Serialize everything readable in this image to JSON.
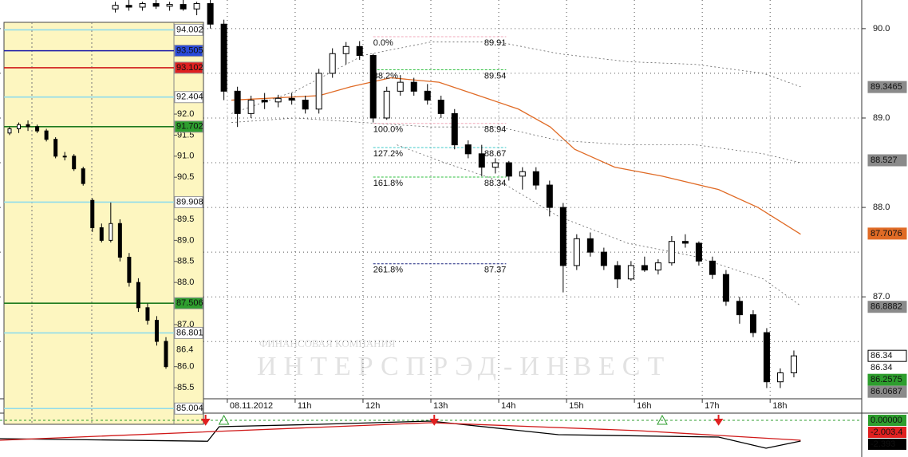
{
  "chart_data": [
    {
      "type": "candlestick",
      "xlim": [
        6.65,
        19.35
      ],
      "ylim": [
        85.86,
        90.32
      ],
      "xticks": [
        {
          "value": 10,
          "label": "08.11.2012"
        },
        {
          "value": 11,
          "label": "11h"
        },
        {
          "value": 12,
          "label": "12h"
        },
        {
          "value": 13,
          "label": "13h"
        },
        {
          "value": 14,
          "label": "14h"
        },
        {
          "value": 15,
          "label": "15h"
        },
        {
          "value": 16,
          "label": "16h"
        },
        {
          "value": 17,
          "label": "17h"
        },
        {
          "value": 18,
          "label": "18h"
        }
      ],
      "yticks": [
        {
          "value": 87,
          "label": "87.0"
        },
        {
          "value": 88,
          "label": "88.0"
        },
        {
          "value": 89,
          "label": "89.0"
        },
        {
          "value": 90,
          "label": "90.0"
        }
      ],
      "yminor": [
        86.5,
        87.5,
        88.5,
        89.5
      ],
      "grid": true,
      "x": [
        8.35,
        8.55,
        8.75,
        8.95,
        9.15,
        9.35,
        9.55,
        9.75,
        9.95,
        10.15,
        10.35,
        10.55,
        10.75,
        10.95,
        11.15,
        11.35,
        11.55,
        11.75,
        11.95,
        12.15,
        12.35,
        12.55,
        12.75,
        12.95,
        13.15,
        13.35,
        13.55,
        13.75,
        13.95,
        14.15,
        14.35,
        14.55,
        14.75,
        14.95,
        15.15,
        15.35,
        15.55,
        15.75,
        15.95,
        16.15,
        16.35,
        16.55,
        16.75,
        16.95,
        17.15,
        17.35,
        17.55,
        17.75,
        17.95,
        18.15,
        18.35
      ],
      "open": [
        90.22,
        90.26,
        90.24,
        90.28,
        90.25,
        90.27,
        90.22,
        90.28,
        90.05,
        89.3,
        89.05,
        89.2,
        89.18,
        89.22,
        89.2,
        89.1,
        89.5,
        89.72,
        89.8,
        89.7,
        89.0,
        89.3,
        89.4,
        89.3,
        89.2,
        89.05,
        88.7,
        88.6,
        88.45,
        88.5,
        88.35,
        88.4,
        88.25,
        88.0,
        87.35,
        87.65,
        87.5,
        87.35,
        87.2,
        87.35,
        87.3,
        87.38,
        87.62,
        87.6,
        87.4,
        87.25,
        86.95,
        86.8,
        86.6,
        86.05,
        86.15
      ],
      "high": [
        90.3,
        90.32,
        90.3,
        90.32,
        90.3,
        90.32,
        90.3,
        90.32,
        90.1,
        89.35,
        89.25,
        89.28,
        89.26,
        89.28,
        89.25,
        89.55,
        89.78,
        89.85,
        89.86,
        89.72,
        89.35,
        89.48,
        89.45,
        89.38,
        89.25,
        89.1,
        88.75,
        88.7,
        88.55,
        88.52,
        88.45,
        88.45,
        88.3,
        88.05,
        87.7,
        87.72,
        87.55,
        87.4,
        87.4,
        87.45,
        87.42,
        87.68,
        87.7,
        87.62,
        87.45,
        87.3,
        87.0,
        86.85,
        86.65,
        86.2,
        86.4
      ],
      "low": [
        90.18,
        90.2,
        90.2,
        90.22,
        90.2,
        90.2,
        90.15,
        90.0,
        89.2,
        88.9,
        89.0,
        89.1,
        89.12,
        89.15,
        89.05,
        89.05,
        89.45,
        89.6,
        89.65,
        88.95,
        88.98,
        89.25,
        89.25,
        89.15,
        89.0,
        88.65,
        88.55,
        88.35,
        88.38,
        88.3,
        88.2,
        88.2,
        87.9,
        87.05,
        87.3,
        87.45,
        87.3,
        87.1,
        87.18,
        87.28,
        87.25,
        87.35,
        87.55,
        87.35,
        87.2,
        86.9,
        86.7,
        86.55,
        85.98,
        85.98,
        86.1
      ],
      "close": [
        90.26,
        90.24,
        90.28,
        90.25,
        90.27,
        90.22,
        90.28,
        90.05,
        89.3,
        89.05,
        89.2,
        89.18,
        89.22,
        89.2,
        89.1,
        89.5,
        89.72,
        89.8,
        89.7,
        89.0,
        89.3,
        89.4,
        89.3,
        89.2,
        89.05,
        88.7,
        88.6,
        88.45,
        88.5,
        88.35,
        88.4,
        88.25,
        88.0,
        87.35,
        87.65,
        87.5,
        87.35,
        87.2,
        87.35,
        87.3,
        87.38,
        87.62,
        87.6,
        87.4,
        87.25,
        86.95,
        86.8,
        86.6,
        86.05,
        86.15,
        86.34
      ],
      "series": [
        {
          "color": "#e06b26",
          "style": "solid",
          "x": [
            10.06,
            11.35,
            11.82,
            12.41,
            13.12,
            13.71,
            14.29,
            14.76,
            15.12,
            15.71,
            16.41,
            17.24,
            17.82,
            18.45
          ],
          "values": [
            89.2,
            89.25,
            89.35,
            89.45,
            89.4,
            89.25,
            89.1,
            88.9,
            88.65,
            88.45,
            88.35,
            88.2,
            88.0,
            87.7
          ]
        },
        {
          "color": "#666666",
          "style": "dotted",
          "x": [
            10.06,
            11.0,
            12.0,
            13.0,
            14.0,
            14.88,
            15.9,
            16.9,
            17.9,
            18.45
          ],
          "values": [
            89.05,
            89.3,
            89.7,
            89.85,
            89.85,
            89.72,
            89.63,
            89.6,
            89.5,
            89.35
          ]
        },
        {
          "color": "#666666",
          "style": "dotted",
          "x": [
            10.06,
            11.0,
            12.0,
            13.0,
            14.0,
            14.88,
            15.9,
            16.9,
            17.9,
            18.45
          ],
          "values": [
            88.95,
            89.0,
            88.95,
            88.9,
            88.9,
            88.75,
            88.7,
            88.7,
            88.6,
            88.5
          ]
        },
        {
          "color": "#666666",
          "style": "dotted",
          "x": [
            12.5,
            13.2,
            14.0,
            14.88,
            15.9,
            16.9,
            17.9,
            18.45
          ],
          "values": [
            88.7,
            88.5,
            88.3,
            87.9,
            87.6,
            87.45,
            87.2,
            86.9
          ]
        }
      ],
      "fib_x": [
        12.15,
        14.11
      ],
      "fib_levels": [
        {
          "label": "0.0%",
          "value": 89.91,
          "color": "#f2a7b8"
        },
        {
          "label": "38.2%",
          "value": 89.54,
          "color": "#2fbf3f"
        },
        {
          "label": "100.0%",
          "value": 88.94,
          "color": "#f2a7b8"
        },
        {
          "label": "127.2%",
          "value": 88.67,
          "color": "#3cc8c8"
        },
        {
          "label": "161.8%",
          "value": 88.34,
          "color": "#2fbf3f"
        },
        {
          "label": "261.8%",
          "value": 87.37,
          "color": "#1a237e"
        }
      ],
      "price_tags": [
        {
          "value": 89.3465,
          "color": "#8a8a8a",
          "text_color": "#000000"
        },
        {
          "value": 88.527,
          "color": "#8a8a8a",
          "text_color": "#000000"
        },
        {
          "value": 87.7076,
          "color": "#e06b26",
          "text_color": "#000000"
        },
        {
          "value": 86.8882,
          "color": "#8a8a8a",
          "text_color": "#000000"
        },
        {
          "value": 86.34,
          "color": "#ffffff",
          "text_color": "#000000"
        },
        {
          "value": 86.34,
          "color": "none",
          "text_color": "#000000"
        },
        {
          "value": 86.2575,
          "color": "#2e9e2e",
          "text_color": "#ffffff"
        },
        {
          "value": 86.0687,
          "color": "#8a8a8a",
          "text_color": "#ffffff"
        }
      ],
      "watermark": {
        "line1": "ФИНАНСОВАЯ КОМПАНИЯ",
        "line2": "ИНТЕРСПРЭД-ИНВЕСТ"
      }
    },
    {
      "type": "candlestick",
      "ylim": [
        84.63,
        94.18
      ],
      "yticks": [
        {
          "value": 85.5,
          "label": "85.5"
        },
        {
          "value": 86,
          "label": "86.0"
        },
        {
          "value": 87,
          "label": "87.0"
        },
        {
          "value": 88,
          "label": "88.0"
        },
        {
          "value": 88.5,
          "label": "88.5"
        },
        {
          "value": 89,
          "label": "89.0"
        },
        {
          "value": 89.5,
          "label": "89.5"
        },
        {
          "value": 90.5,
          "label": "90.5"
        },
        {
          "value": 91,
          "label": "91.0"
        },
        {
          "value": 91.5,
          "label": "91.5"
        },
        {
          "value": 92,
          "label": "92.0"
        }
      ],
      "x": [
        0,
        1,
        2,
        3,
        4,
        5,
        6,
        7,
        8,
        9,
        10,
        11,
        12,
        13,
        14,
        15,
        16,
        17
      ],
      "open": [
        91.55,
        91.65,
        91.75,
        91.7,
        91.6,
        91.4,
        91.0,
        91.0,
        90.7,
        89.95,
        89.3,
        89.0,
        89.4,
        88.6,
        88.0,
        87.4,
        87.1,
        86.6
      ],
      "high": [
        91.7,
        91.8,
        91.85,
        91.75,
        91.65,
        91.45,
        91.1,
        91.05,
        90.75,
        90.0,
        89.4,
        89.9,
        89.5,
        88.7,
        88.1,
        87.5,
        87.2,
        86.7
      ],
      "low": [
        91.5,
        91.55,
        91.6,
        91.55,
        91.35,
        90.95,
        90.9,
        90.65,
        90.3,
        89.2,
        88.95,
        88.95,
        88.5,
        87.9,
        87.3,
        87.0,
        86.5,
        85.95
      ],
      "close": [
        91.65,
        91.75,
        91.7,
        91.6,
        91.4,
        91.0,
        91.0,
        90.7,
        90.35,
        89.3,
        89.0,
        89.4,
        88.6,
        88.0,
        87.4,
        87.1,
        86.6,
        86.0
      ],
      "levels": [
        {
          "value": 94.002,
          "color": "#8fdcec",
          "tag_color": "#ffffff",
          "text_color": "#000000"
        },
        {
          "value": 93.505,
          "color": "#1a1aa8",
          "tag_color": "#2a4ad8",
          "text_color": "#000000"
        },
        {
          "value": 93.102,
          "color": "#d01818",
          "tag_color": "#e02020",
          "text_color": "#000000"
        },
        {
          "value": 92.404,
          "color": "#8fdcec",
          "tag_color": "#ffffff",
          "text_color": "#000000"
        },
        {
          "value": 91.702,
          "color": "#1e7a1e",
          "tag_color": "#2e9e2e",
          "text_color": "#000000"
        },
        {
          "value": 89.908,
          "color": "#8fdcec",
          "tag_color": "#ffffff",
          "text_color": "#000000"
        },
        {
          "value": 87.506,
          "color": "#1e7a1e",
          "tag_color": "#2e9e2e",
          "text_color": "#000000"
        },
        {
          "value": 86.801,
          "color": "#8fdcec",
          "tag_color": "#ffffff",
          "text_color": "#000000"
        },
        {
          "value": 86.4,
          "color": "none",
          "tag_color": "none",
          "text_color": "#000000"
        },
        {
          "value": 85.004,
          "color": "#8fdcec",
          "tag_color": "#ffffff",
          "text_color": "#000000"
        }
      ]
    },
    {
      "type": "line",
      "xlim": [
        6.65,
        19.35
      ],
      "ylim": [
        -3.68,
        0.72
      ],
      "yticks": [
        {
          "value": 0,
          "label": "0.00000"
        }
      ],
      "series": [
        {
          "color": "#000000",
          "x": [
            6.65,
            9.71,
            9.88,
            11.35,
            13.0,
            14.88,
            17.24,
            17.94,
            18.45
          ],
          "values": [
            -1.84,
            -2.1,
            -0.64,
            -0.4,
            -0.08,
            -1.44,
            -1.68,
            -2.8,
            -2.08
          ]
        },
        {
          "color": "#d01818",
          "x": [
            6.65,
            13.0,
            16.06,
            18.45
          ],
          "values": [
            -2.0,
            -0.24,
            -1.04,
            -2.0
          ]
        }
      ],
      "signals": [
        {
          "x": 9.68,
          "kind": "sell"
        },
        {
          "x": 9.95,
          "kind": "buy"
        },
        {
          "x": 13.05,
          "kind": "sell"
        },
        {
          "x": 16.41,
          "kind": "buy"
        },
        {
          "x": 17.24,
          "kind": "sell"
        }
      ],
      "tags": [
        {
          "value": 0,
          "label": "0.00000",
          "color": "#2e9e2e"
        },
        {
          "label": "-2.003.4",
          "color": "#e02020"
        },
        {
          "value": -2.393,
          "color": "#000000"
        }
      ]
    }
  ]
}
